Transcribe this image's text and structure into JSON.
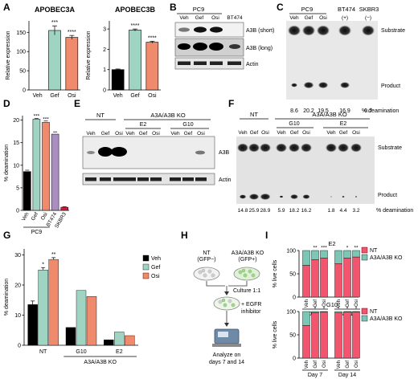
{
  "panels": {
    "A": {
      "letter": "A",
      "charts": [
        {
          "title": "APOBEC3A",
          "ylabel": "Relative expression",
          "categories": [
            "Veh",
            "Gef",
            "Osi"
          ],
          "values": [
            0,
            155,
            137
          ],
          "errors": [
            0,
            12,
            5
          ],
          "stars": [
            "",
            "***",
            "****"
          ],
          "yticks": [
            0,
            50,
            100,
            150
          ],
          "ylim": [
            0,
            180
          ]
        },
        {
          "title": "APOBEC3B",
          "ylabel": "Relative expression",
          "categories": [
            "Veh",
            "Gef",
            "Osi"
          ],
          "values": [
            1.0,
            2.95,
            2.35
          ],
          "errors": [
            0.03,
            0.05,
            0.05
          ],
          "stars": [
            "",
            "****",
            "****"
          ],
          "yticks": [
            0,
            1,
            2,
            3
          ],
          "ylim": [
            0,
            3.4
          ]
        }
      ],
      "colors": [
        "#000000",
        "#9fd4c3",
        "#f08a6c"
      ]
    },
    "B": {
      "letter": "B",
      "group": "PC9",
      "lanes": [
        "Veh",
        "Gef",
        "Osi",
        "BT474"
      ],
      "bands": [
        "A3B (short)",
        "A3B (long)",
        "Actin"
      ]
    },
    "C": {
      "letter": "C",
      "group_labels": [
        "PC9",
        "BT474",
        "SKBR3"
      ],
      "sub_labels": [
        "(+)",
        "(−)"
      ],
      "lanes": [
        "Veh",
        "Gef",
        "Osi"
      ],
      "substrate": "Substrate",
      "product": "Product",
      "deamination_values": [
        "8.6",
        "20.2",
        "19.5",
        "16.9",
        "0.7"
      ],
      "deamination_label": "% deamination"
    },
    "D": {
      "letter": "D",
      "chart_data": {
        "type": "bar",
        "ylabel": "% deamination",
        "categories": [
          "Veh",
          "Gef",
          "Osi",
          "BT474",
          "SKBR3"
        ],
        "values": [
          8.6,
          20.2,
          19.5,
          16.9,
          0.7
        ],
        "errors": [
          0.3,
          0.2,
          0.3,
          0.5,
          0.1
        ],
        "stars": [
          "",
          "***",
          "***",
          "",
          ""
        ],
        "colors": [
          "#000000",
          "#9fd4c3",
          "#f08a6c",
          "#a98ec0",
          "#d81b3c"
        ],
        "group_label": "PC9",
        "yticks": [
          0,
          5,
          10,
          15,
          20
        ],
        "ylim": [
          0,
          21
        ]
      }
    },
    "E": {
      "letter": "E",
      "groups": [
        "NT",
        "A3A/A3B KO"
      ],
      "clones": [
        "E2",
        "G10"
      ],
      "lanes": [
        "Veh",
        "Gef",
        "Osi",
        "Veh",
        "Gef",
        "Osi",
        "Veh",
        "Gef",
        "Osi"
      ],
      "bands": [
        "A3B",
        "Actin"
      ]
    },
    "F": {
      "letter": "F",
      "groups": [
        "NT",
        "A3A/A3B KO"
      ],
      "clones": [
        "G10",
        "E2"
      ],
      "lanes": [
        "Veh",
        "Gef",
        "Osi",
        "Veh",
        "Gef",
        "Osi",
        "Veh",
        "Gef",
        "Osi"
      ],
      "substrate": "Substrate",
      "product": "Product",
      "deamination_values": [
        "14.8",
        "25.9",
        "28.9",
        "5.9",
        "18.2",
        "16.2",
        "1.8",
        "4.4",
        "3.2"
      ],
      "deamination_label": "% deamination"
    },
    "G": {
      "letter": "G",
      "chart_data": {
        "type": "bar",
        "ylabel": "% deamination",
        "categories": [
          "NT",
          "G10",
          "E2"
        ],
        "group_label": "A3A/A3B KO",
        "series": [
          {
            "name": "Veh",
            "values": [
              13.5,
              5.9,
              1.8
            ],
            "errors": [
              1.2,
              0,
              0
            ],
            "color": "#000000"
          },
          {
            "name": "Gef",
            "values": [
              25.0,
              18.2,
              4.4
            ],
            "errors": [
              0.8,
              0,
              0
            ],
            "color": "#9fd4c3"
          },
          {
            "name": "Osi",
            "values": [
              28.5,
              16.2,
              3.2
            ],
            "errors": [
              0.6,
              0,
              0
            ],
            "color": "#f08a6c"
          }
        ],
        "stars": {
          "NT": [
            "",
            "*",
            "**"
          ]
        },
        "yticks": [
          0,
          10,
          20,
          30
        ],
        "ylim": [
          0,
          32
        ]
      }
    },
    "H": {
      "letter": "H",
      "left_label": "NT",
      "left_sub": "(GFP−)",
      "right_label": "A3A/A3B KO",
      "right_sub": "(GFP+)",
      "step1": "Culture 1:1",
      "step2": "+ EGFR",
      "step2b": "inhibitor",
      "step3": "Analyze on",
      "step3b": "days 7 and 14"
    },
    "I": {
      "letter": "I",
      "charts": [
        {
          "title": "E2",
          "ylabel": "% live cells",
          "days": [
            "Day 7",
            "Day 14"
          ],
          "lanes": [
            "Veh",
            "Gef",
            "Osi"
          ],
          "nt_values": [
            [
              68,
              80,
              84
            ],
            [
              72,
              84,
              86
            ]
          ],
          "stars": [
            [
              "",
              "**",
              "***"
            ],
            [
              "",
              "*",
              "**"
            ]
          ]
        },
        {
          "title": "G10",
          "ylabel": "% live cells",
          "days": [
            "Day 7",
            "Day 14"
          ],
          "lanes": [
            "Veh",
            "Gef",
            "Osi"
          ],
          "nt_values": [
            [
              70,
              98,
              99
            ],
            [
              97,
              99,
              99
            ]
          ],
          "stars": [
            [
              "",
              "*",
              "*"
            ],
            [
              "*",
              "*",
              "*"
            ]
          ]
        }
      ],
      "yticks": [
        0,
        50,
        100
      ],
      "legend": [
        "NT",
        "A3A/A3B KO"
      ],
      "colors": [
        "#f2566e",
        "#7cc6b5"
      ]
    }
  }
}
